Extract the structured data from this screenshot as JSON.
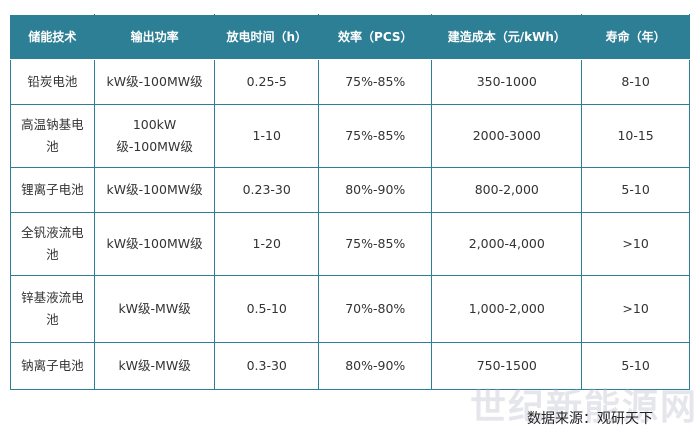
{
  "table": {
    "header": [
      "储能技术",
      "输出功率",
      "放电时间（h）",
      "效率（PCS）",
      "建造成本（元/kWh）",
      "寿命（年）"
    ],
    "rows": [
      [
        "铅炭电池",
        "kW级-100MW级",
        "0.25-5",
        "75%-85%",
        "350-1000",
        "8-10"
      ],
      [
        "高温钠基电池",
        "100kW级-100MW级",
        "1-10",
        "75%-85%",
        "2000-3000",
        "10-15"
      ],
      [
        "锂离子电池",
        "kW级-100MW级",
        "0.23-30",
        "80%-90%",
        "800-2,000",
        "5-10"
      ],
      [
        "全钒液流电池",
        "kW级-100MW级",
        "1-20",
        "75%-85%",
        "2,000-4,000",
        ">10"
      ],
      [
        "锌基液流电池",
        "kW级-MW级",
        "0.5-10",
        "70%-80%",
        "1,000-2,000",
        ">10"
      ],
      [
        "钠离子电池",
        "kW级-MW级",
        "0.3-30",
        "80%-90%",
        "750-1500",
        "5-10"
      ]
    ]
  },
  "source": "数据来源：观研天下",
  "watermark": "世纪新能源网"
}
